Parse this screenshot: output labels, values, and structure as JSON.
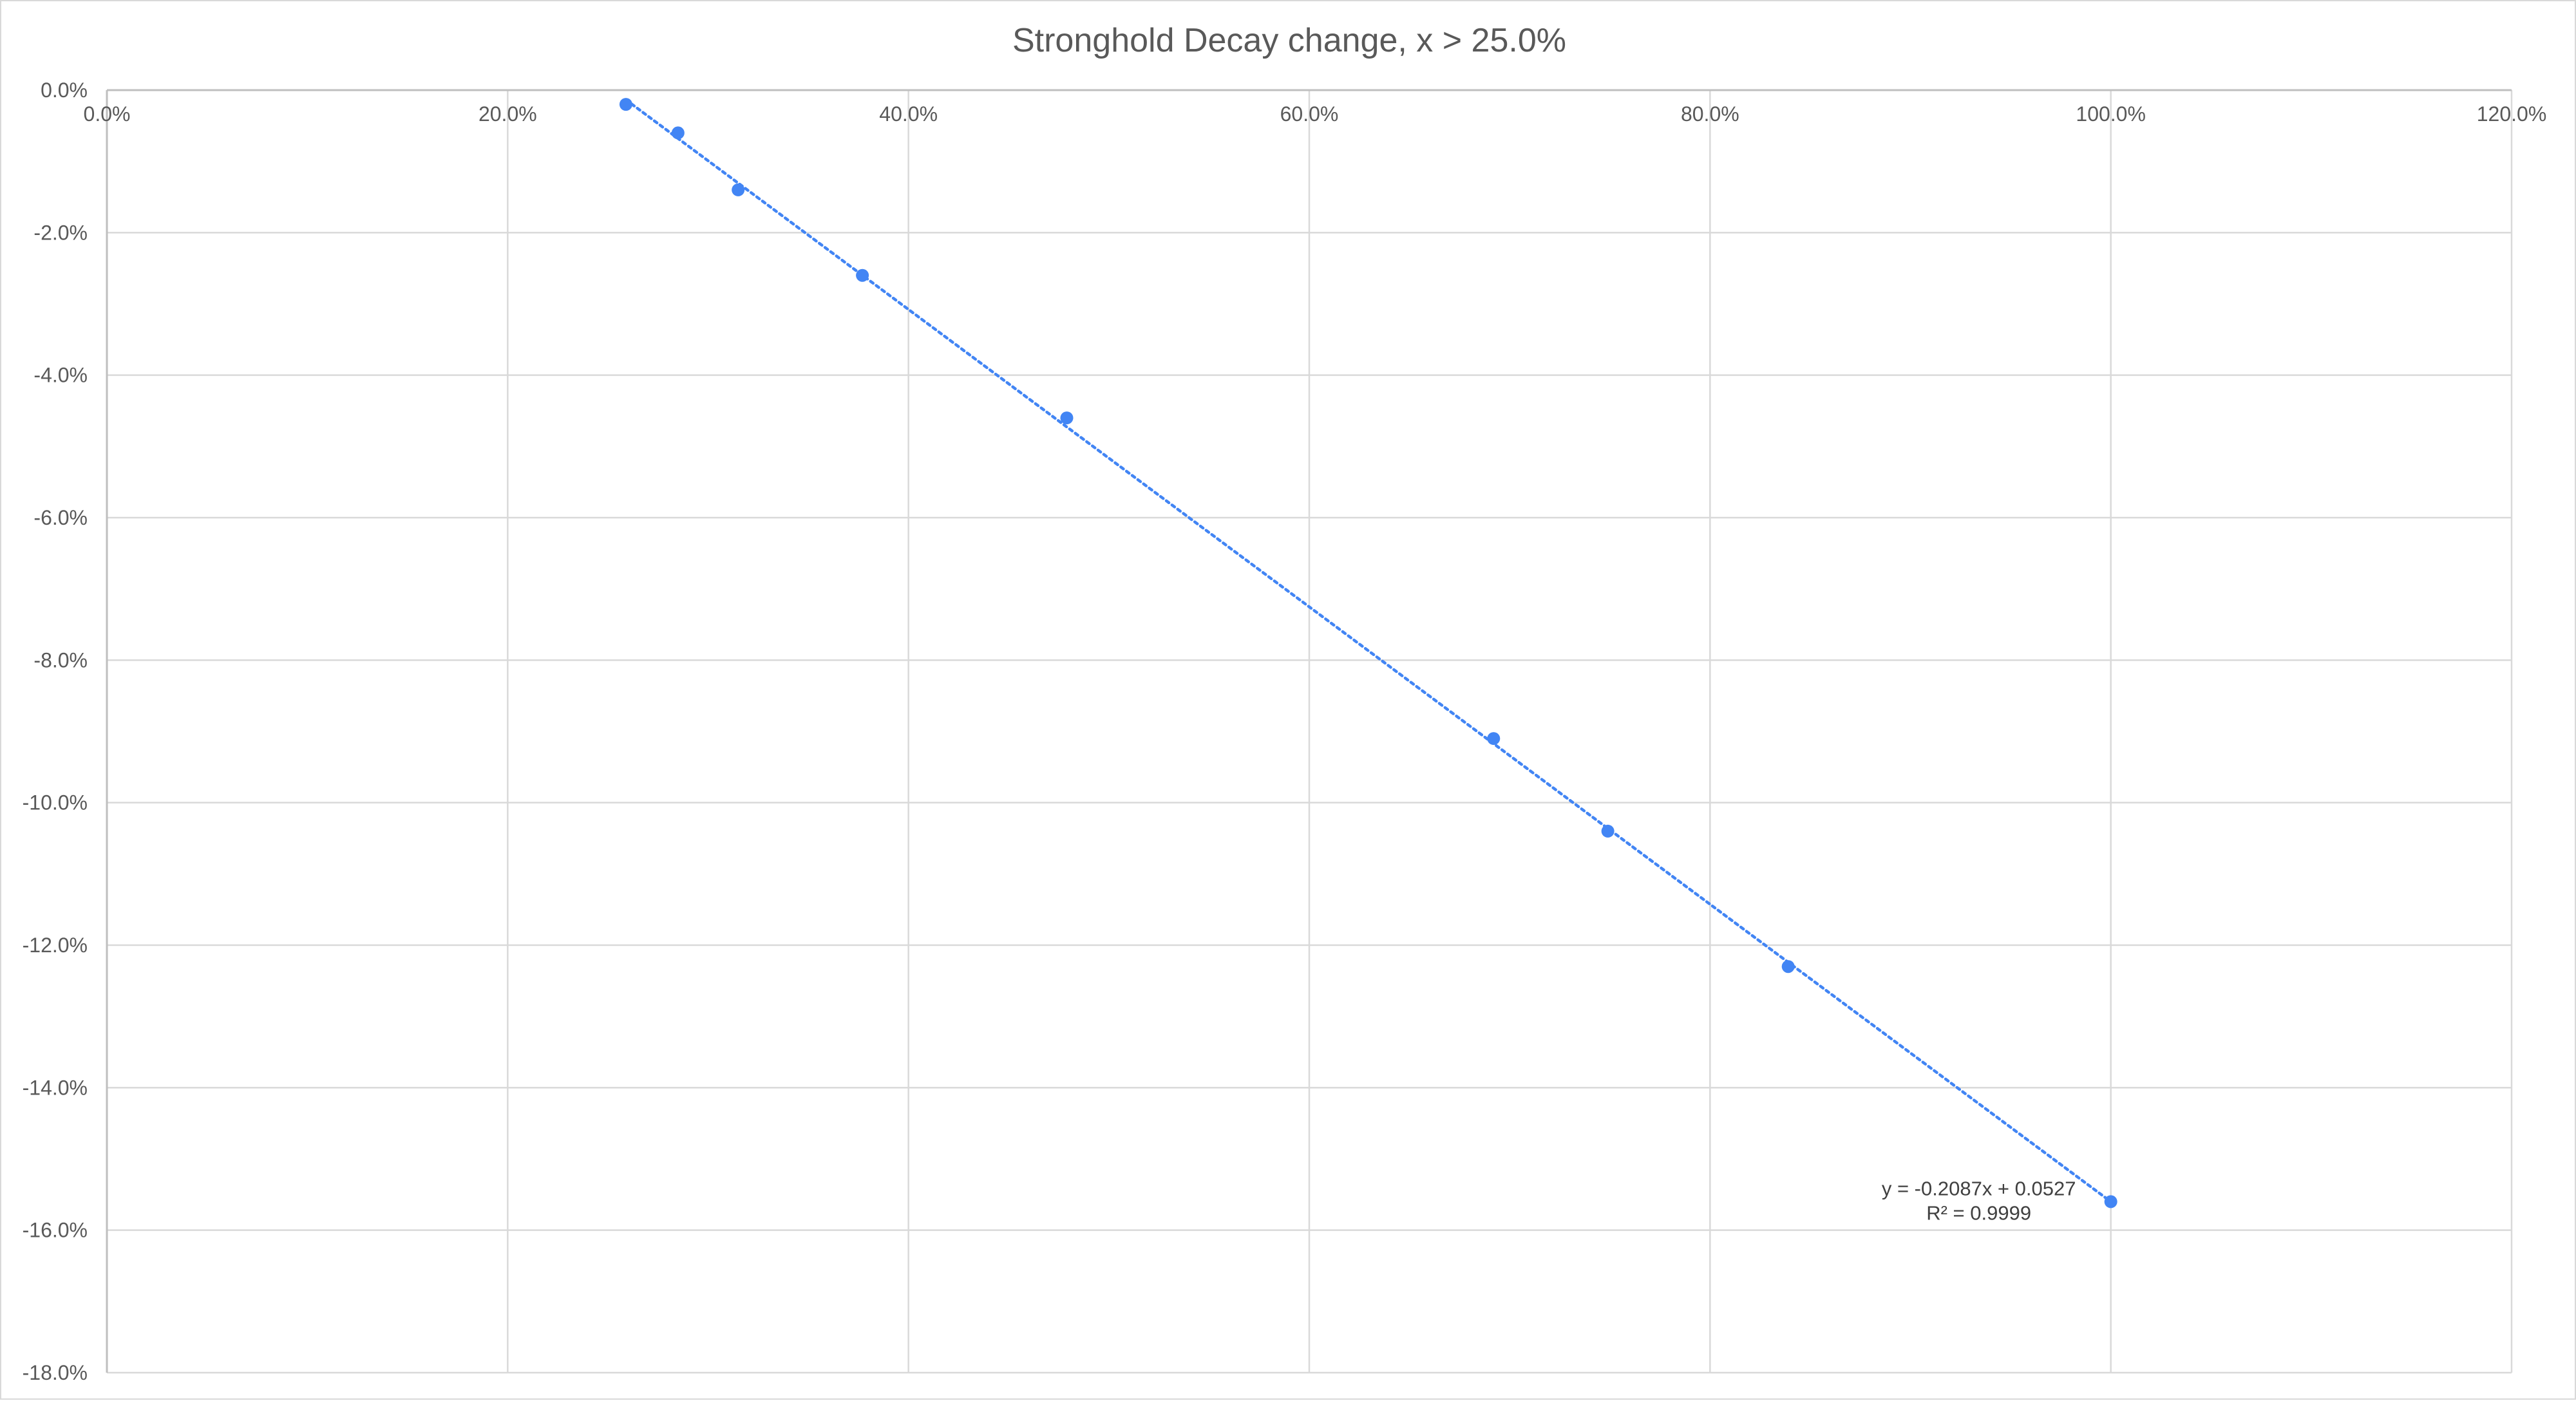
{
  "chart_data": {
    "type": "scatter",
    "title": "Stronghold Decay change, x > 25.0%",
    "xlabel": "",
    "ylabel": "",
    "xlim": [
      0,
      1.2
    ],
    "ylim": [
      -0.18,
      0
    ],
    "x_ticks": [
      0,
      0.2,
      0.4,
      0.6,
      0.8,
      1.0,
      1.2
    ],
    "x_tick_labels": [
      "0.0%",
      "20.0%",
      "40.0%",
      "60.0%",
      "80.0%",
      "100.0%",
      "120.0%"
    ],
    "y_ticks": [
      0,
      -0.02,
      -0.04,
      -0.06,
      -0.08,
      -0.1,
      -0.12,
      -0.14,
      -0.16,
      -0.18
    ],
    "y_tick_labels": [
      "0.0%",
      "-2.0%",
      "-4.0%",
      "-6.0%",
      "-8.0%",
      "-10.0%",
      "-12.0%",
      "-14.0%",
      "-16.0%",
      "-18.0%"
    ],
    "x_axis_position": "top",
    "grid": true,
    "legend": "none",
    "series": [
      {
        "color": "#4285f4",
        "marker": "circle",
        "points": [
          {
            "x": 0.259,
            "y": -0.002
          },
          {
            "x": 0.285,
            "y": -0.006
          },
          {
            "x": 0.315,
            "y": -0.014
          },
          {
            "x": 0.377,
            "y": -0.026
          },
          {
            "x": 0.479,
            "y": -0.046
          },
          {
            "x": 0.692,
            "y": -0.091
          },
          {
            "x": 0.749,
            "y": -0.104
          },
          {
            "x": 0.839,
            "y": -0.123
          },
          {
            "x": 1.0,
            "y": -0.156
          }
        ]
      }
    ],
    "trendline": {
      "type": "linear",
      "style": "dotted",
      "color": "#4285f4",
      "slope": -0.2087,
      "intercept": 0.0527,
      "x_range": [
        0.259,
        1.0
      ],
      "equation_label": "y = -0.2087x + 0.0527",
      "r2_label": "R² = 0.9999"
    }
  }
}
